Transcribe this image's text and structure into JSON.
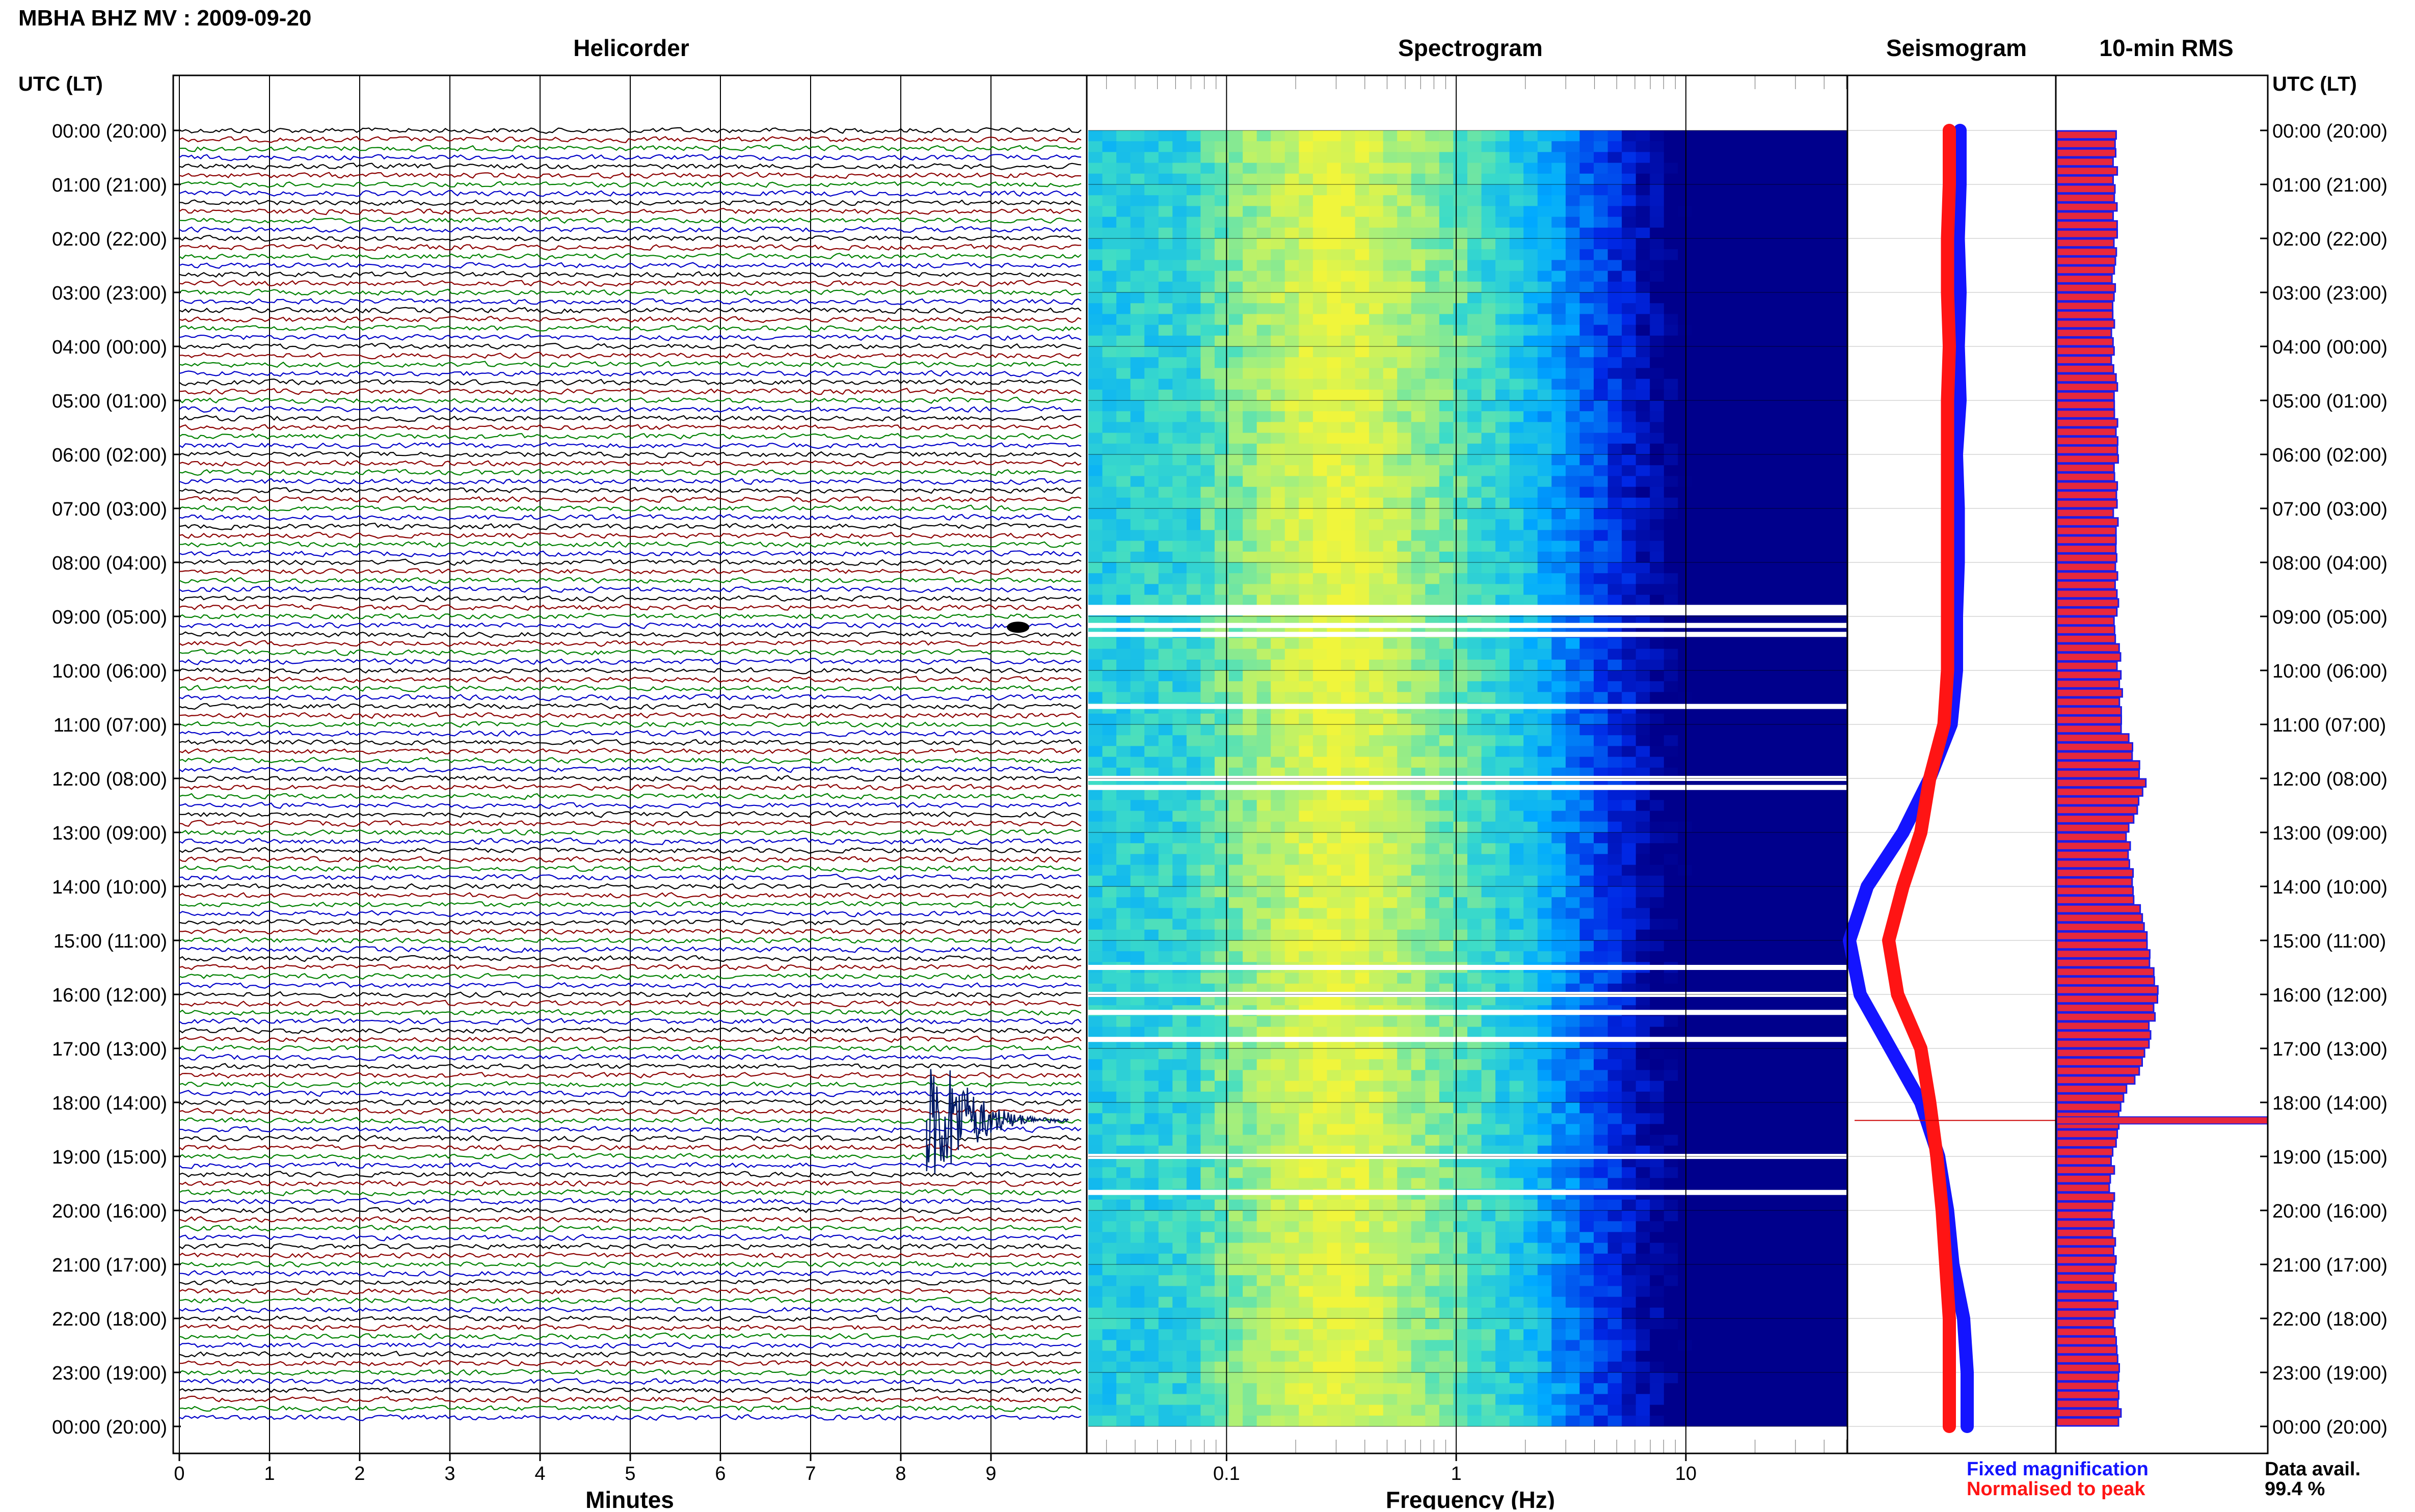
{
  "header": {
    "title": "MBHA BHZ MV : 2009-09-20"
  },
  "panels": {
    "helicorder": "Helicorder",
    "spectrogram": "Spectrogram",
    "seismogram": "Seismogram",
    "rms": "10-min RMS"
  },
  "axes": {
    "time_left_header": "UTC (LT)",
    "time_right_header": "UTC (LT)",
    "minutes_label": "Minutes",
    "frequency_label": "Frequency (Hz)"
  },
  "footer": {
    "legend_fixed": "Fixed magnification",
    "legend_normalised": "Normalised to peak",
    "data_avail_label": "Data avail.",
    "data_avail_value": "99.4 %"
  },
  "colors": {
    "trace_cycle": [
      "#000000",
      "#8b0000",
      "#008000",
      "#0000c8"
    ],
    "fixed": "#1414ff",
    "normalised": "#ff1414",
    "rms_fill": "#e8283c",
    "rms_edge": "#1e1ee6"
  },
  "chart_data": {
    "type": "heatmap",
    "time_ticks": [
      "00:00 (20:00)",
      "01:00 (21:00)",
      "02:00 (22:00)",
      "03:00 (23:00)",
      "04:00 (00:00)",
      "05:00 (01:00)",
      "06:00 (02:00)",
      "07:00 (03:00)",
      "08:00 (04:00)",
      "09:00 (05:00)",
      "10:00 (06:00)",
      "11:00 (07:00)",
      "12:00 (08:00)",
      "13:00 (09:00)",
      "14:00 (10:00)",
      "15:00 (11:00)",
      "16:00 (12:00)",
      "17:00 (13:00)",
      "18:00 (14:00)",
      "19:00 (15:00)",
      "20:00 (16:00)",
      "21:00 (17:00)",
      "22:00 (18:00)",
      "23:00 (19:00)",
      "00:00 (20:00)"
    ],
    "minute_ticks": [
      "0",
      "1",
      "2",
      "3",
      "4",
      "5",
      "6",
      "7",
      "8",
      "9"
    ],
    "minute_range": [
      0,
      10
    ],
    "frequency_ticks": [
      "0.1",
      "1",
      "10"
    ],
    "frequency_range": [
      0.025,
      50
    ],
    "frequency_scale": "log",
    "helicorder": {
      "lines_per_hour": 6,
      "event": {
        "time_utc": "18:20",
        "minute": 8.4
      }
    },
    "spectrogram_gaps_utc": [
      "08:50",
      "08:53",
      "08:56",
      "09:10",
      "09:20",
      "10:40",
      "12:00",
      "12:10",
      "15:30",
      "16:00",
      "16:20",
      "16:50",
      "19:00",
      "19:40"
    ],
    "seismogram": {
      "fixed_magnification": [
        [
          0,
          0.62
        ],
        [
          1,
          0.62
        ],
        [
          2,
          0.61
        ],
        [
          3,
          0.62
        ],
        [
          4,
          0.61
        ],
        [
          5,
          0.62
        ],
        [
          6,
          0.6
        ],
        [
          7,
          0.61
        ],
        [
          8,
          0.61
        ],
        [
          9,
          0.6
        ],
        [
          10,
          0.6
        ],
        [
          11,
          0.57
        ],
        [
          12,
          0.45
        ],
        [
          13,
          0.3
        ],
        [
          14,
          0.1
        ],
        [
          15,
          0.0
        ],
        [
          16,
          0.06
        ],
        [
          17,
          0.23
        ],
        [
          18,
          0.4
        ],
        [
          19,
          0.5
        ],
        [
          20,
          0.55
        ],
        [
          21,
          0.58
        ],
        [
          22,
          0.64
        ],
        [
          23,
          0.66
        ],
        [
          24,
          0.66
        ]
      ],
      "normalised_to_peak": [
        [
          0,
          0.56
        ],
        [
          1,
          0.56
        ],
        [
          2,
          0.55
        ],
        [
          3,
          0.55
        ],
        [
          4,
          0.56
        ],
        [
          5,
          0.55
        ],
        [
          6,
          0.55
        ],
        [
          7,
          0.55
        ],
        [
          8,
          0.55
        ],
        [
          9,
          0.55
        ],
        [
          10,
          0.55
        ],
        [
          11,
          0.53
        ],
        [
          12,
          0.45
        ],
        [
          13,
          0.4
        ],
        [
          14,
          0.3
        ],
        [
          15,
          0.22
        ],
        [
          16,
          0.27
        ],
        [
          17,
          0.4
        ],
        [
          18,
          0.45
        ],
        [
          19,
          0.49
        ],
        [
          20,
          0.52
        ],
        [
          21,
          0.54
        ],
        [
          22,
          0.56
        ],
        [
          23,
          0.56
        ],
        [
          24,
          0.56
        ]
      ]
    },
    "rms": [
      0.32,
      0.32,
      0.32,
      0.3,
      0.31,
      0.32,
      0.32,
      0.32,
      0.33,
      0.32,
      0.34,
      0.36,
      0.48,
      0.38,
      0.42,
      0.5,
      0.55,
      0.48,
      0.35,
      0.3,
      0.3,
      0.32,
      0.32,
      0.33,
      0.34
    ],
    "rms_spike": {
      "time_utc": "18:20",
      "value": 1.0
    },
    "data_availability_percent": 99.4
  }
}
